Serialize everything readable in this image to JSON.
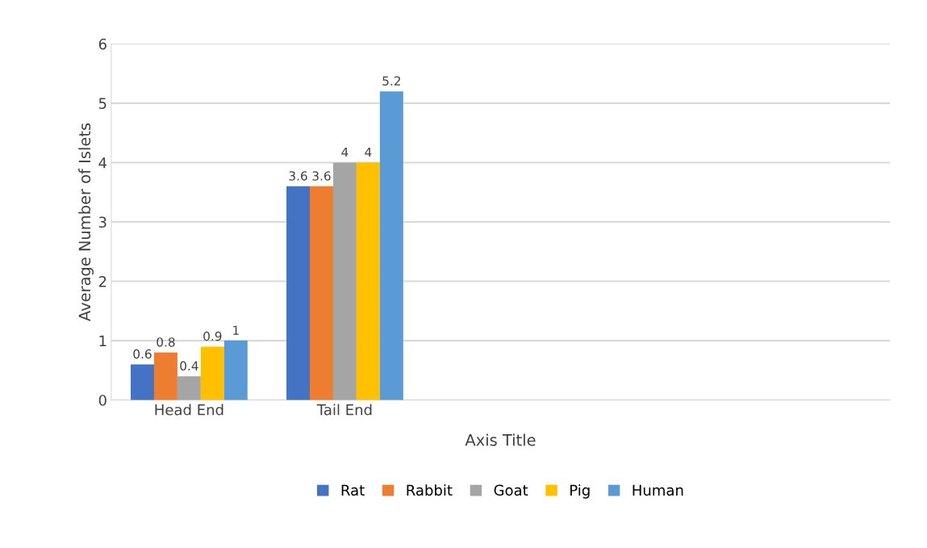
{
  "chart_data": {
    "type": "bar",
    "xlabel": "Axis Title",
    "ylabel": "Average Number of Islets",
    "categories": [
      "Head End",
      "Tail End",
      null,
      null,
      null
    ],
    "series": [
      {
        "name": "Rat",
        "color": "#4472c4",
        "values": [
          0.6,
          3.6,
          null,
          null,
          null
        ]
      },
      {
        "name": "Rabbit",
        "color": "#ed7d31",
        "values": [
          0.8,
          3.6,
          null,
          null,
          null
        ]
      },
      {
        "name": "Goat",
        "color": "#a5a5a5",
        "values": [
          0.4,
          4,
          null,
          null,
          null
        ]
      },
      {
        "name": "Pig",
        "color": "#ffc000",
        "values": [
          0.9,
          4,
          null,
          null,
          null
        ]
      },
      {
        "name": "Human",
        "color": "#5b9bd5",
        "values": [
          1,
          5.2,
          null,
          null,
          null
        ]
      }
    ],
    "ylim": [
      0,
      6
    ],
    "yticks": [
      0,
      1,
      2,
      3,
      4,
      5,
      6
    ],
    "grid": "y",
    "legend": "bottom",
    "data_labels": true
  }
}
